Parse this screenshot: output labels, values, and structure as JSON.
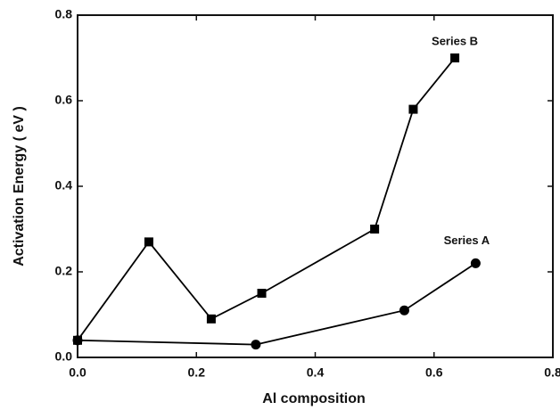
{
  "chart_data": {
    "type": "line",
    "xlabel": "Al composition",
    "ylabel": "Activation Energy ( eV )",
    "xlim": [
      0,
      0.8
    ],
    "ylim": [
      0,
      0.8
    ],
    "xticks": [
      {
        "value": 0,
        "label": "0.0"
      },
      {
        "value": 0.2,
        "label": "0.2"
      },
      {
        "value": 0.4,
        "label": "0.4"
      },
      {
        "value": 0.6,
        "label": "0.6"
      },
      {
        "value": 0.8,
        "label": "0.8"
      }
    ],
    "yticks": [
      {
        "value": 0,
        "label": "0.0"
      },
      {
        "value": 0.2,
        "label": "0.2"
      },
      {
        "value": 0.4,
        "label": "0.4"
      },
      {
        "value": 0.6,
        "label": "0.6"
      },
      {
        "value": 0.8,
        "label": "0.8"
      }
    ],
    "series": [
      {
        "name": "Series B",
        "color": "#000000",
        "marker": "square",
        "x": [
          0,
          0.12,
          0.225,
          0.31,
          0.5,
          0.565,
          0.635
        ],
        "values": [
          0.04,
          0.27,
          0.09,
          0.15,
          0.3,
          0.58,
          0.7
        ]
      },
      {
        "name": "Series A",
        "color": "#000000",
        "marker": "circle",
        "x": [
          0,
          0.3,
          0.55,
          0.67
        ],
        "values": [
          0.04,
          0.03,
          0.11,
          0.22
        ]
      }
    ]
  }
}
